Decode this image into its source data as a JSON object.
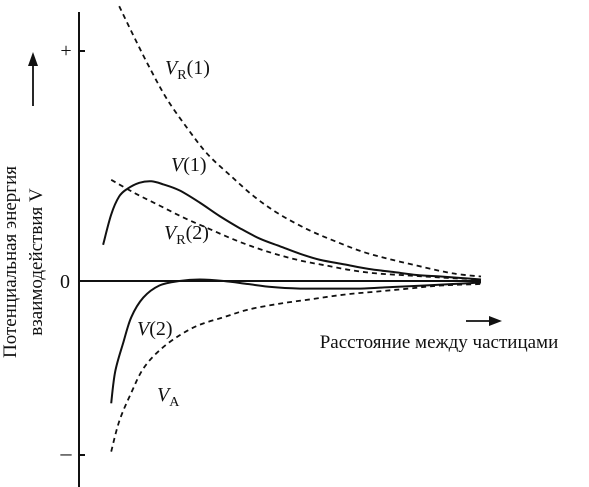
{
  "chart_data": {
    "type": "line",
    "title": "",
    "xlabel": "Расстояние между частицами",
    "ylabel_line1": "Потенциальная энергия",
    "ylabel_line2": "взаимодействия V",
    "ytick_plus": "+",
    "ytick_zero": "0",
    "ytick_minus": "–",
    "series": [
      {
        "name": "V_R(1)",
        "label_main": "V",
        "label_sub": "R",
        "label_suffix": "(1)",
        "style": "dashed",
        "points": [
          [
            0.1,
            1.82
          ],
          [
            0.14,
            1.6
          ],
          [
            0.18,
            1.39
          ],
          [
            0.22,
            1.2
          ],
          [
            0.27,
            1.01
          ],
          [
            0.32,
            0.84
          ],
          [
            0.38,
            0.69
          ],
          [
            0.44,
            0.55
          ],
          [
            0.5,
            0.44
          ],
          [
            0.57,
            0.34
          ],
          [
            0.64,
            0.26
          ],
          [
            0.71,
            0.19
          ],
          [
            0.78,
            0.14
          ],
          [
            0.86,
            0.09
          ],
          [
            0.93,
            0.05
          ],
          [
            1.0,
            0.03
          ]
        ]
      },
      {
        "name": "V(1)",
        "label_main": "V",
        "label_sub": "",
        "label_suffix": "(1)",
        "style": "solid",
        "points": [
          [
            0.06,
            0.24
          ],
          [
            0.08,
            0.44
          ],
          [
            0.1,
            0.56
          ],
          [
            0.12,
            0.61
          ],
          [
            0.15,
            0.65
          ],
          [
            0.18,
            0.66
          ],
          [
            0.21,
            0.64
          ],
          [
            0.25,
            0.6
          ],
          [
            0.3,
            0.52
          ],
          [
            0.35,
            0.43
          ],
          [
            0.4,
            0.35
          ],
          [
            0.45,
            0.28
          ],
          [
            0.5,
            0.23
          ],
          [
            0.55,
            0.18
          ],
          [
            0.6,
            0.14
          ],
          [
            0.66,
            0.11
          ],
          [
            0.72,
            0.08
          ],
          [
            0.78,
            0.06
          ],
          [
            0.84,
            0.04
          ],
          [
            0.9,
            0.03
          ],
          [
            0.95,
            0.02
          ],
          [
            1.0,
            0.01
          ]
        ]
      },
      {
        "name": "V_R(2)",
        "label_main": "V",
        "label_sub": "R",
        "label_suffix": "(2)",
        "style": "dashed",
        "points": [
          [
            0.08,
            0.67
          ],
          [
            0.14,
            0.58
          ],
          [
            0.2,
            0.5
          ],
          [
            0.26,
            0.42
          ],
          [
            0.32,
            0.35
          ],
          [
            0.38,
            0.28
          ],
          [
            0.44,
            0.22
          ],
          [
            0.5,
            0.17
          ],
          [
            0.56,
            0.13
          ],
          [
            0.62,
            0.1
          ],
          [
            0.68,
            0.07
          ],
          [
            0.74,
            0.05
          ],
          [
            0.8,
            0.04
          ],
          [
            0.86,
            0.03
          ],
          [
            0.92,
            0.02
          ],
          [
            1.0,
            0.01
          ]
        ]
      },
      {
        "name": "V(2)",
        "label_main": "V",
        "label_sub": "",
        "label_suffix": "(2)",
        "style": "solid",
        "points": [
          [
            0.08,
            -0.81
          ],
          [
            0.09,
            -0.6
          ],
          [
            0.11,
            -0.41
          ],
          [
            0.13,
            -0.24
          ],
          [
            0.16,
            -0.11
          ],
          [
            0.2,
            -0.03
          ],
          [
            0.25,
            0.0
          ],
          [
            0.3,
            0.01
          ],
          [
            0.36,
            0.0
          ],
          [
            0.42,
            -0.02
          ],
          [
            0.48,
            -0.04
          ],
          [
            0.55,
            -0.05
          ],
          [
            0.62,
            -0.05
          ],
          [
            0.7,
            -0.05
          ],
          [
            0.78,
            -0.04
          ],
          [
            0.86,
            -0.03
          ],
          [
            0.93,
            -0.02
          ],
          [
            1.0,
            -0.01
          ]
        ]
      },
      {
        "name": "V_A",
        "label_main": "V",
        "label_sub": "A",
        "label_suffix": "",
        "style": "dashed",
        "points": [
          [
            0.08,
            -1.13
          ],
          [
            0.1,
            -0.93
          ],
          [
            0.13,
            -0.74
          ],
          [
            0.16,
            -0.58
          ],
          [
            0.2,
            -0.46
          ],
          [
            0.25,
            -0.36
          ],
          [
            0.3,
            -0.29
          ],
          [
            0.36,
            -0.24
          ],
          [
            0.42,
            -0.19
          ],
          [
            0.5,
            -0.15
          ],
          [
            0.58,
            -0.12
          ],
          [
            0.66,
            -0.09
          ],
          [
            0.74,
            -0.07
          ],
          [
            0.82,
            -0.05
          ],
          [
            0.9,
            -0.03
          ],
          [
            1.0,
            -0.02
          ]
        ]
      }
    ],
    "xlim": [
      0,
      1
    ],
    "ylim": [
      -1.2,
      1.85
    ],
    "grid": false,
    "legend": "none"
  }
}
